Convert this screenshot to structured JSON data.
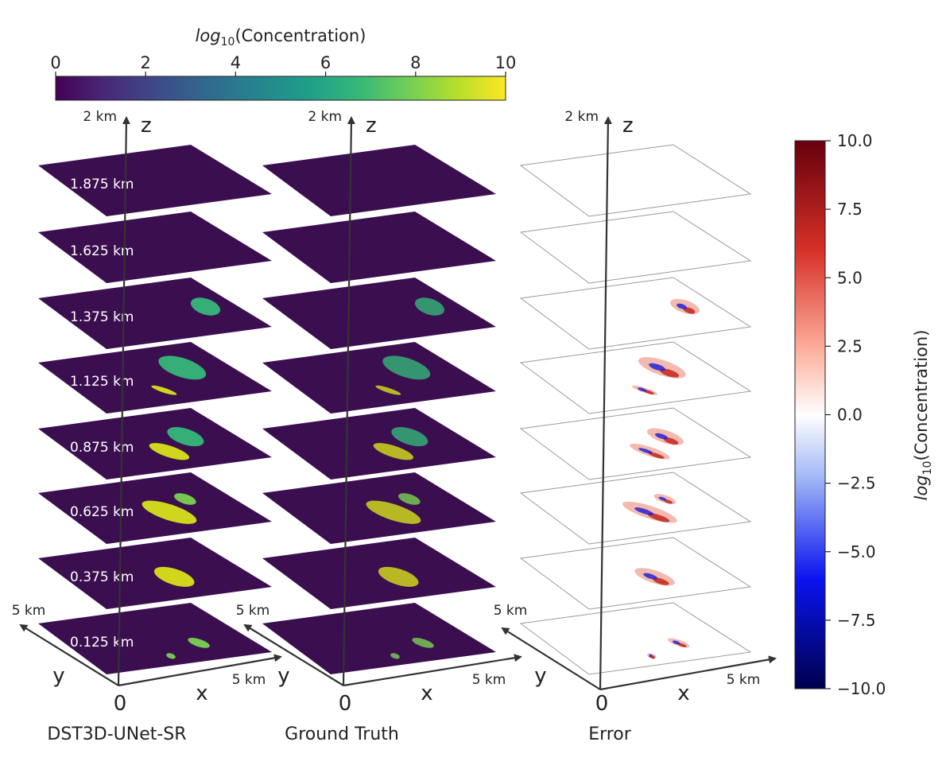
{
  "top_colorbar": {
    "title_main": "log",
    "title_sub": "10",
    "title_rest": "(Concentration)",
    "ticks": [
      "0",
      "2",
      "4",
      "6",
      "8",
      "10"
    ],
    "colors": [
      "#440154",
      "#482878",
      "#3e4989",
      "#31688e",
      "#26828e",
      "#1f9e89",
      "#35b779",
      "#6ece58",
      "#b5de2b",
      "#fde725"
    ]
  },
  "right_colorbar": {
    "title_main": "log",
    "title_sub": "10",
    "title_rest": "(Concentration)",
    "ticks": [
      "10.0",
      "7.5",
      "5.0",
      "2.5",
      "0.0",
      "−2.5",
      "−5.0",
      "−7.5",
      "−10.0"
    ],
    "colors": [
      "#67000d",
      "#d73027",
      "#fdae9b",
      "#ffffff",
      "#9db3f5",
      "#0a14f0",
      "#00004d"
    ]
  },
  "panels": [
    {
      "label": "DST3D-UNet-SR",
      "z_top": "2 km",
      "y_end": "5 km",
      "x_end": "5 km",
      "origin": "0",
      "z": "z",
      "y": "y",
      "x": "x"
    },
    {
      "label": "Ground Truth",
      "z_top": "2 km",
      "y_end": "5 km",
      "x_end": "5 km",
      "origin": "0",
      "z": "z",
      "y": "y",
      "x": "x"
    },
    {
      "label": "Error",
      "z_top": "2 km",
      "y_end": "5 km",
      "x_end": "5 km",
      "origin": "0",
      "z": "z",
      "y": "y",
      "x": "x"
    }
  ],
  "slice_levels": [
    "1.875 km",
    "1.625 km",
    "1.375 km",
    "1.125 km",
    "0.875 km",
    "0.625 km",
    "0.375 km",
    "0.125 km"
  ],
  "colors": {
    "background_plane": "#3b0f4f",
    "error_plane_edge": "#9a9a9a",
    "axis": "#333333"
  }
}
